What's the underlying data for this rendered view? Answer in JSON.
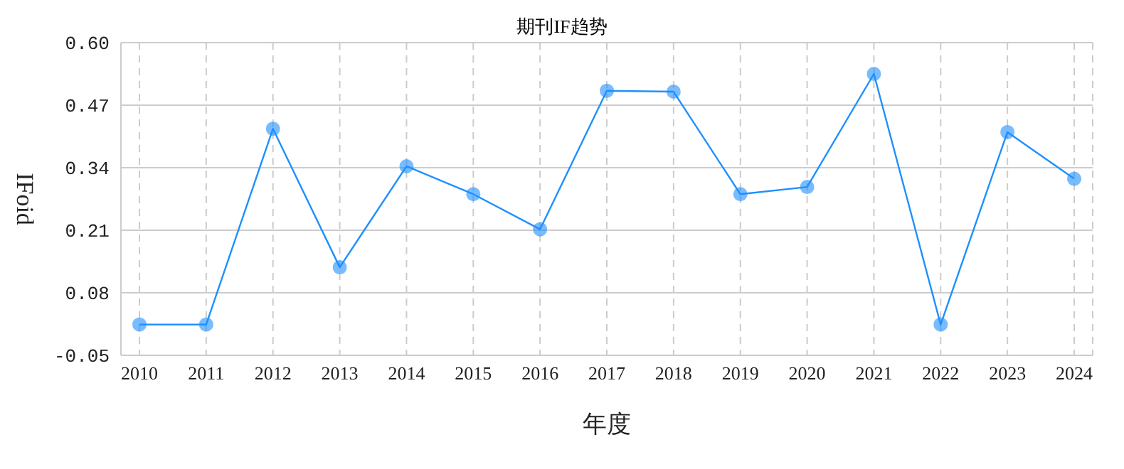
{
  "chart_data": {
    "type": "line",
    "title": "期刊IF趋势",
    "xlabel": "年度",
    "ylabel": "IFoid",
    "categories": [
      "2010",
      "2011",
      "2012",
      "2013",
      "2014",
      "2015",
      "2016",
      "2017",
      "2018",
      "2019",
      "2020",
      "2021",
      "2022",
      "2023",
      "2024"
    ],
    "series": [
      {
        "color": "#1e90ff",
        "values": [
          0.014,
          0.014,
          0.421,
          0.133,
          0.343,
          0.285,
          0.212,
          0.5,
          0.498,
          0.285,
          0.3,
          0.535,
          0.014,
          0.414,
          0.317
        ]
      }
    ],
    "ylim": [
      -0.05,
      0.6
    ],
    "yticks": [
      {
        "value": -0.05,
        "label": "-0.05"
      },
      {
        "value": 0.08,
        "label": "0.08"
      },
      {
        "value": 0.21,
        "label": "0.21"
      },
      {
        "value": 0.34,
        "label": "0.34"
      },
      {
        "value": 0.47,
        "label": "0.47"
      },
      {
        "value": 0.6,
        "label": "0.60"
      }
    ],
    "grid": true,
    "marker": "circle",
    "line_style": "solid",
    "legend": false
  }
}
